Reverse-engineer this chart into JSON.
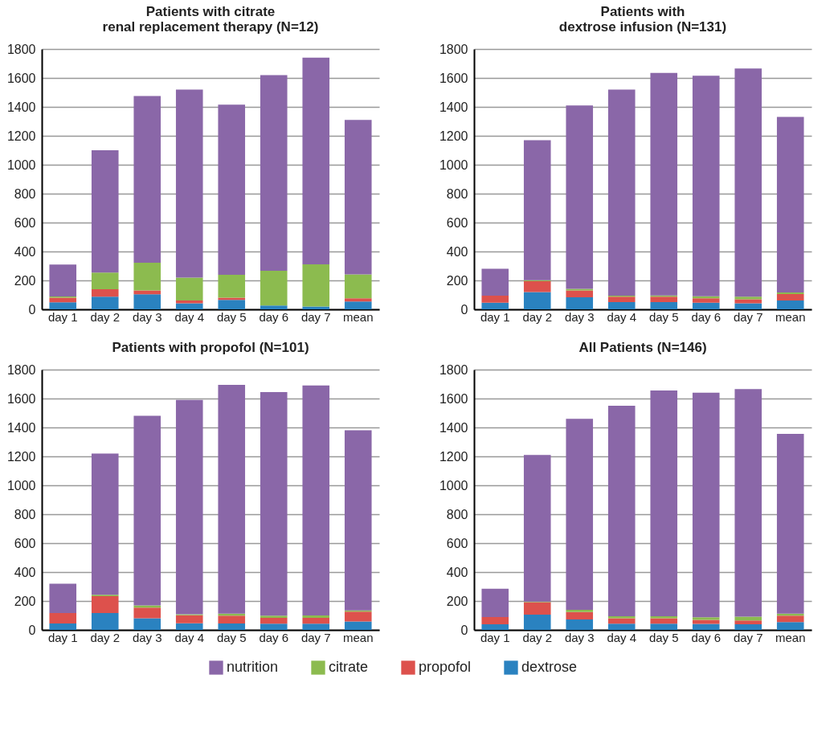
{
  "chart_data": [
    {
      "type": "bar",
      "title": "Patients with citrate\nrenal replacement therapy (N=12)",
      "stacked": true,
      "categories": [
        "day 1",
        "day 2",
        "day 3",
        "day 4",
        "day 5",
        "day 6",
        "day 7",
        "mean"
      ],
      "ylim": [
        0,
        1800
      ],
      "yticks": [
        0,
        200,
        400,
        600,
        800,
        1000,
        1200,
        1400,
        1600,
        1800
      ],
      "grid": "y",
      "legend": "bottom",
      "series": [
        {
          "name": "dextrose",
          "color": "#2a82c0",
          "values": [
            48,
            87,
            104,
            41,
            65,
            26,
            19,
            54
          ]
        },
        {
          "name": "propofol",
          "color": "#dd514c",
          "values": [
            33,
            52,
            26,
            20,
            16,
            0,
            0,
            22
          ]
        },
        {
          "name": "citrate",
          "color": "#8cbb4f",
          "values": [
            8,
            115,
            192,
            158,
            158,
            241,
            292,
            165
          ]
        },
        {
          "name": "nutrition",
          "color": "#8a67a8",
          "values": [
            221,
            846,
            1153,
            1301,
            1176,
            1353,
            1429,
            1069
          ]
        }
      ]
    },
    {
      "type": "bar",
      "title": "Patients with\ndextrose infusion (N=131)",
      "stacked": true,
      "categories": [
        "day 1",
        "day 2",
        "day 3",
        "day 4",
        "day 5",
        "day 6",
        "day 7",
        "mean"
      ],
      "ylim": [
        0,
        1800
      ],
      "yticks": [
        0,
        200,
        400,
        600,
        800,
        1000,
        1200,
        1400,
        1600,
        1800
      ],
      "grid": "y",
      "legend": "bottom",
      "series": [
        {
          "name": "dextrose",
          "color": "#2a82c0",
          "values": [
            46,
            120,
            83,
            50,
            50,
            46,
            42,
            61
          ]
        },
        {
          "name": "propofol",
          "color": "#dd514c",
          "values": [
            48,
            75,
            48,
            37,
            37,
            30,
            28,
            44
          ]
        },
        {
          "name": "citrate",
          "color": "#8cbb4f",
          "values": [
            0,
            6,
            11,
            7,
            9,
            14,
            18,
            11
          ]
        },
        {
          "name": "nutrition",
          "color": "#8a67a8",
          "values": [
            186,
            969,
            1268,
            1426,
            1539,
            1525,
            1577,
            1214
          ]
        }
      ]
    },
    {
      "type": "bar",
      "title": "Patients with propofol (N=101)",
      "stacked": true,
      "categories": [
        "day 1",
        "day 2",
        "day 3",
        "day 4",
        "day 5",
        "day 6",
        "day 7",
        "mean"
      ],
      "ylim": [
        0,
        1800
      ],
      "yticks": [
        0,
        200,
        400,
        600,
        800,
        1000,
        1200,
        1400,
        1600,
        1800
      ],
      "grid": "y",
      "legend": "bottom",
      "series": [
        {
          "name": "dextrose",
          "color": "#2a82c0",
          "values": [
            44,
            117,
            81,
            46,
            44,
            43,
            43,
            59
          ]
        },
        {
          "name": "propofol",
          "color": "#dd514c",
          "values": [
            73,
            116,
            73,
            56,
            54,
            40,
            40,
            67
          ]
        },
        {
          "name": "citrate",
          "color": "#8cbb4f",
          "values": [
            0,
            10,
            15,
            7,
            15,
            15,
            17,
            9
          ]
        },
        {
          "name": "nutrition",
          "color": "#8a67a8",
          "values": [
            203,
            977,
            1311,
            1481,
            1582,
            1547,
            1590,
            1245
          ]
        }
      ]
    },
    {
      "type": "bar",
      "title": "All Patients (N=146)",
      "stacked": true,
      "categories": [
        "day 1",
        "day 2",
        "day 3",
        "day 4",
        "day 5",
        "day 6",
        "day 7",
        "mean"
      ],
      "ylim": [
        0,
        1800
      ],
      "yticks": [
        0,
        200,
        400,
        600,
        800,
        1000,
        1200,
        1400,
        1600,
        1800
      ],
      "grid": "y",
      "legend": "bottom",
      "series": [
        {
          "name": "dextrose",
          "color": "#2a82c0",
          "values": [
            39,
            106,
            72,
            43,
            43,
            41,
            39,
            54
          ]
        },
        {
          "name": "propofol",
          "color": "#dd514c",
          "values": [
            50,
            85,
            52,
            38,
            38,
            29,
            26,
            44
          ]
        },
        {
          "name": "citrate",
          "color": "#8cbb4f",
          "values": [
            0,
            5,
            15,
            13,
            13,
            17,
            26,
            15
          ]
        },
        {
          "name": "nutrition",
          "color": "#8a67a8",
          "values": [
            196,
            1014,
            1321,
            1456,
            1561,
            1553,
            1574,
            1242
          ]
        }
      ]
    }
  ]
}
